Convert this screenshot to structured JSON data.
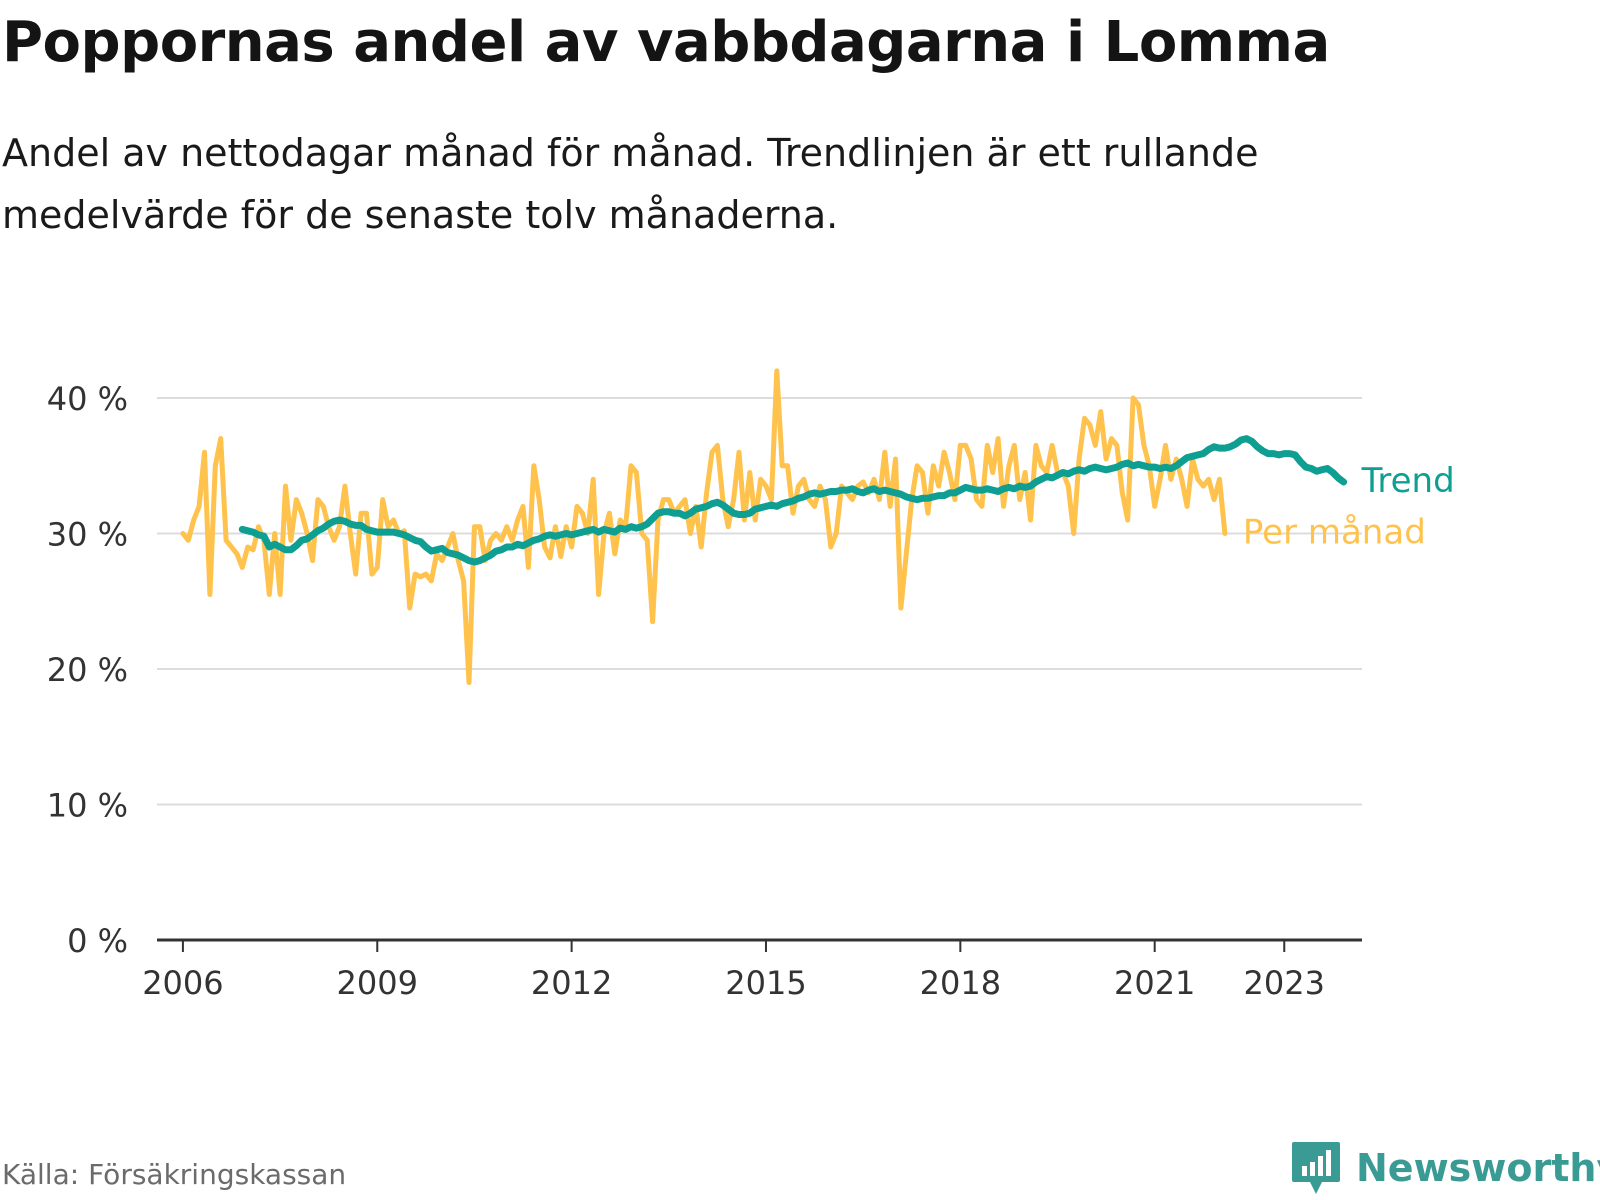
{
  "header": {
    "title": "Poppornas andel av vabbdagarna i Lomma",
    "subtitle": "Andel av nettodagar månad för månad. Trendlinjen är ett rullande medelvärde för de senaste tolv månaderna."
  },
  "footer": {
    "source": "Källa: Försäkringskassan",
    "brand": "Newsworthy",
    "brand_icon": "bar-chart-speech-bubble-icon"
  },
  "colors": {
    "monthly": "#ffc24d",
    "trend": "#0f9e92",
    "grid": "#dcdcdc",
    "axis": "#333333",
    "brand": "#3a9b95"
  },
  "chart_data": {
    "type": "line",
    "x_start": "2006-01",
    "x_step": "month",
    "xlim": [
      2005.6,
      2024.2
    ],
    "ylim": [
      0,
      40
    ],
    "ylabel": "",
    "xlabel": "",
    "yticks": [
      0,
      10,
      20,
      30,
      40
    ],
    "ytick_labels": [
      "0 %",
      "10 %",
      "20 %",
      "30 %",
      "40 %"
    ],
    "xticks": [
      2006,
      2009,
      2012,
      2015,
      2018,
      2021,
      2023
    ],
    "xtick_labels": [
      "2006",
      "2009",
      "2012",
      "2015",
      "2018",
      "2021",
      "2023"
    ],
    "grid": true,
    "series": [
      {
        "name": "Per månad",
        "values": [
          30.0,
          29.5,
          31.0,
          32.0,
          36.0,
          25.5,
          35.0,
          37.0,
          29.5,
          29.0,
          28.5,
          27.5,
          29.0,
          28.8,
          30.5,
          29.5,
          25.5,
          30.0,
          25.5,
          33.5,
          29.5,
          32.5,
          31.5,
          30.0,
          28.0,
          32.5,
          32.0,
          30.5,
          29.5,
          30.5,
          33.5,
          30.0,
          27.0,
          31.5,
          31.5,
          27.0,
          27.5,
          32.5,
          30.5,
          31.0,
          30.0,
          30.2,
          24.5,
          27.0,
          26.8,
          27.0,
          26.5,
          28.5,
          28.0,
          29.0,
          30.0,
          28.0,
          26.5,
          19.0,
          30.5,
          30.5,
          28.0,
          29.5,
          30.0,
          29.5,
          30.5,
          29.5,
          31.0,
          32.0,
          27.5,
          35.0,
          32.5,
          29.0,
          28.2,
          30.5,
          28.3,
          30.5,
          29.0,
          32.0,
          31.5,
          30.0,
          34.0,
          25.5,
          30.0,
          31.5,
          28.5,
          31.0,
          30.5,
          35.0,
          34.5,
          30.0,
          29.5,
          23.5,
          31.0,
          32.5,
          32.5,
          31.5,
          32.0,
          32.5,
          30.0,
          32.0,
          29.0,
          33.0,
          36.0,
          36.5,
          32.5,
          30.5,
          32.5,
          36.0,
          31.0,
          34.5,
          31.0,
          34.0,
          33.5,
          32.5,
          42.0,
          35.0,
          35.0,
          31.5,
          33.5,
          34.0,
          32.5,
          32.0,
          33.5,
          32.5,
          29.0,
          30.0,
          33.5,
          33.0,
          32.5,
          33.5,
          33.8,
          33.0,
          34.0,
          32.5,
          36.0,
          32.0,
          35.5,
          24.5,
          28.5,
          32.5,
          35.0,
          34.5,
          31.5,
          35.0,
          33.5,
          36.0,
          34.5,
          32.5,
          36.5,
          36.5,
          35.5,
          32.5,
          32.0,
          36.5,
          34.5,
          37.0,
          32.0,
          35.0,
          36.5,
          32.5,
          34.5,
          31.0,
          36.5,
          35.0,
          34.5,
          36.5,
          34.5,
          34.5,
          33.5,
          30.0,
          35.5,
          38.5,
          38.0,
          36.5,
          39.0,
          35.5,
          37.0,
          36.5,
          33.0,
          31.0,
          40.0,
          39.5,
          36.5,
          35.0,
          32.0,
          34.0,
          36.5,
          34.0,
          35.5,
          34.0,
          32.0,
          35.5,
          34.0,
          33.5,
          34.0,
          32.5,
          34.0,
          30.0
        ]
      },
      {
        "name": "Trend",
        "values": [
          30.3,
          30.2,
          30.1,
          29.9,
          29.8,
          29.0,
          29.2,
          29.0,
          28.8,
          28.8,
          29.1,
          29.5,
          29.6,
          29.9,
          30.2,
          30.4,
          30.7,
          30.9,
          31.0,
          30.9,
          30.7,
          30.6,
          30.6,
          30.3,
          30.2,
          30.1,
          30.1,
          30.1,
          30.1,
          30.0,
          29.9,
          29.7,
          29.5,
          29.4,
          29.0,
          28.7,
          28.8,
          28.9,
          28.6,
          28.5,
          28.4,
          28.2,
          28.0,
          27.9,
          28.0,
          28.2,
          28.4,
          28.7,
          28.8,
          29.0,
          29.0,
          29.2,
          29.1,
          29.3,
          29.5,
          29.6,
          29.8,
          29.9,
          29.8,
          29.9,
          30.0,
          29.9,
          30.0,
          30.1,
          30.2,
          30.3,
          30.1,
          30.3,
          30.2,
          30.1,
          30.4,
          30.3,
          30.5,
          30.4,
          30.5,
          30.7,
          31.1,
          31.5,
          31.6,
          31.6,
          31.5,
          31.5,
          31.3,
          31.5,
          31.8,
          31.9,
          32.0,
          32.2,
          32.3,
          32.1,
          31.8,
          31.5,
          31.4,
          31.4,
          31.5,
          31.8,
          31.9,
          32.0,
          32.1,
          32.0,
          32.2,
          32.3,
          32.4,
          32.6,
          32.7,
          32.9,
          33.0,
          32.9,
          33.0,
          33.1,
          33.1,
          33.2,
          33.2,
          33.3,
          33.1,
          33.0,
          33.2,
          33.3,
          33.1,
          33.2,
          33.1,
          33.0,
          32.9,
          32.7,
          32.6,
          32.5,
          32.6,
          32.6,
          32.7,
          32.8,
          32.8,
          33.0,
          33.0,
          33.2,
          33.4,
          33.3,
          33.2,
          33.2,
          33.3,
          33.2,
          33.1,
          33.3,
          33.4,
          33.3,
          33.5,
          33.4,
          33.5,
          33.8,
          34.0,
          34.2,
          34.1,
          34.3,
          34.5,
          34.4,
          34.6,
          34.7,
          34.6,
          34.8,
          34.9,
          34.8,
          34.7,
          34.8,
          34.9,
          35.1,
          35.2,
          35.0,
          35.1,
          35.0,
          34.9,
          34.9,
          34.8,
          34.9,
          34.8,
          35.0,
          35.3,
          35.6,
          35.7,
          35.8,
          35.9,
          36.2,
          36.4,
          36.3,
          36.3,
          36.4,
          36.6,
          36.9,
          37.0,
          36.8,
          36.4,
          36.1,
          35.9,
          35.9,
          35.8,
          35.9,
          35.9,
          35.8,
          35.3,
          34.9,
          34.8,
          34.6,
          34.7,
          34.8,
          34.5,
          34.1,
          33.8
        ]
      }
    ]
  }
}
